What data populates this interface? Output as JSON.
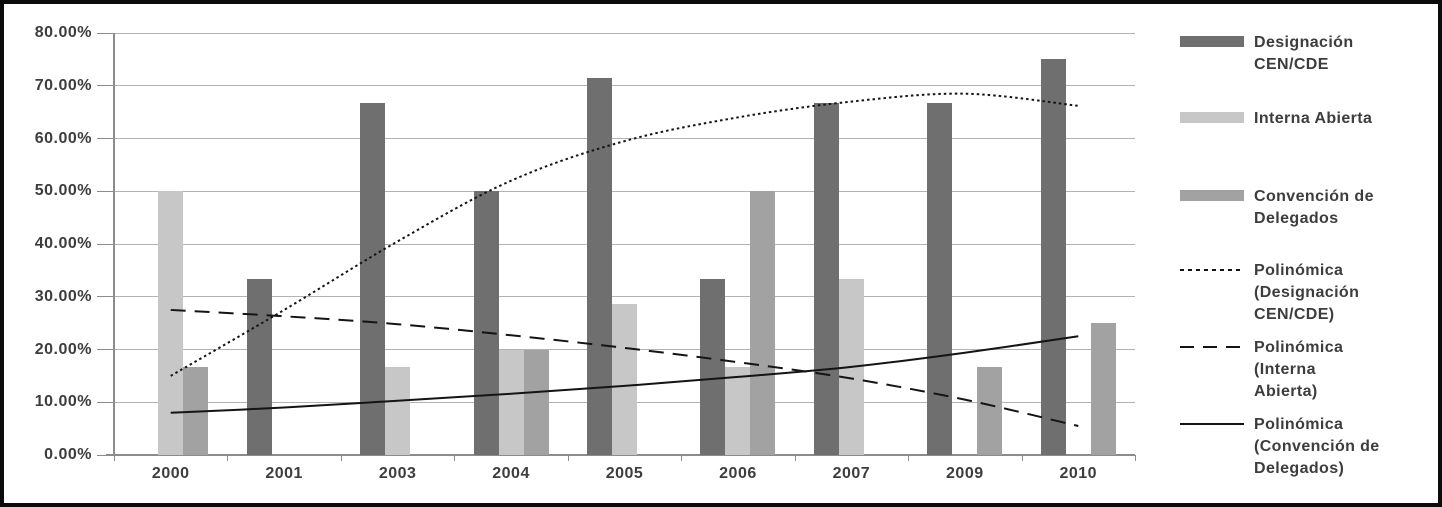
{
  "chart_data": {
    "type": "bar",
    "title": "",
    "xlabel": "",
    "ylabel": "",
    "categories": [
      "2000",
      "2001",
      "2003",
      "2004",
      "2005",
      "2006",
      "2007",
      "2009",
      "2010"
    ],
    "y_tick_labels": [
      "80.00%",
      "70.00%",
      "60.00%",
      "50.00%",
      "40.00%",
      "30.00%",
      "20.00%",
      "10.00%",
      "0.00%"
    ],
    "ylim": [
      0,
      80
    ],
    "grid": true,
    "legend_position": "right",
    "series": [
      {
        "name": "Designación CEN/CDE",
        "kind": "bar",
        "color": "#6f6f6f",
        "values": [
          null,
          33.3,
          66.7,
          50,
          71.4,
          33.3,
          66.7,
          66.7,
          75
        ]
      },
      {
        "name": "Interna Abierta",
        "kind": "bar",
        "color": "#c7c7c7",
        "values": [
          50,
          null,
          16.7,
          20,
          28.6,
          16.7,
          33.3,
          null,
          null
        ]
      },
      {
        "name": "Convención de Delegados",
        "kind": "bar",
        "color": "#a2a2a2",
        "values": [
          16.7,
          null,
          null,
          20,
          null,
          50,
          null,
          16.7,
          25
        ]
      },
      {
        "name": "Polinómica (Designación CEN/CDE)",
        "kind": "trendline",
        "line_style": "dotted",
        "color": "#141414",
        "values": [
          15,
          27.5,
          40.5,
          52,
          59.5,
          64,
          67,
          68.5,
          66.2
        ]
      },
      {
        "name": "Polinómica (Interna Abierta)",
        "kind": "trendline",
        "line_style": "dashed",
        "color": "#141414",
        "values": [
          27.5,
          26.3,
          24.8,
          22.7,
          20.3,
          17.6,
          14.5,
          10.5,
          5.5
        ]
      },
      {
        "name": "Polinómica (Convención de Delegados)",
        "kind": "trendline",
        "line_style": "solid",
        "color": "#141414",
        "values": [
          8,
          9,
          10.3,
          11.6,
          13.1,
          14.8,
          16.7,
          19.4,
          22.5
        ]
      }
    ]
  },
  "legend": {
    "items": [
      {
        "key": "bar",
        "color": "#6f6f6f",
        "lines": [
          "Designación",
          "CEN/CDE"
        ]
      },
      {
        "key": "bar",
        "color": "#c7c7c7",
        "lines": [
          "Interna Abierta"
        ]
      },
      {
        "key": "bar",
        "color": "#a2a2a2",
        "lines": [
          "Convención de",
          "Delegados"
        ]
      },
      {
        "key": "dotted",
        "color": "#141414",
        "lines": [
          "Polinómica",
          "(Designación",
          "CEN/CDE)"
        ]
      },
      {
        "key": "dashed",
        "color": "#141414",
        "lines": [
          "Polinómica",
          "(Interna",
          "Abierta)"
        ]
      },
      {
        "key": "solid",
        "color": "#141414",
        "lines": [
          "Polinómica",
          "(Convención de",
          "Delegados)"
        ]
      }
    ]
  },
  "style_colors": {
    "gridline": "#b3b3b3",
    "axis": "#8c8c8c",
    "text": "#3d3d3d",
    "frame_border": "#0b0b0b",
    "background": "#ffffff"
  }
}
